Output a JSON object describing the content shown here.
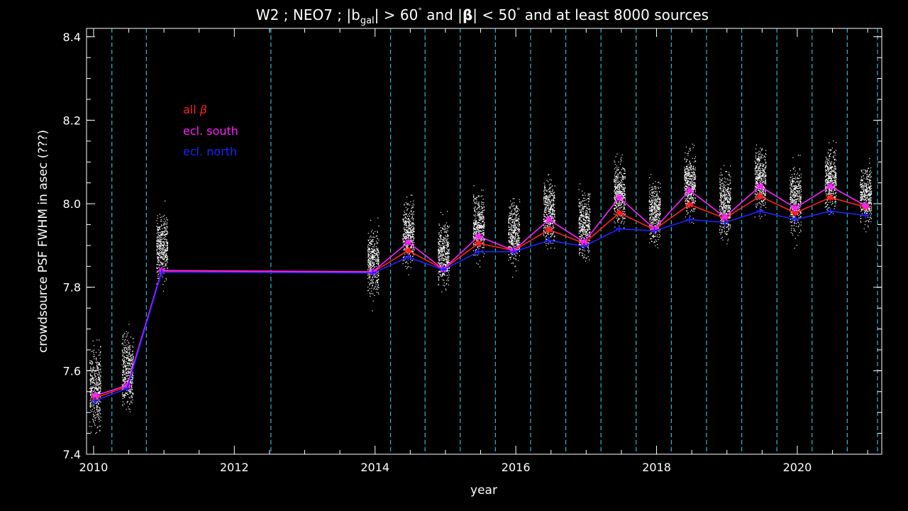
{
  "chart_data": {
    "type": "scatter",
    "title": "W2 ; NEO7 ; |b",
    "title_sub": "gal",
    "title_part2": "| > 60",
    "title_deg1": "°",
    "title_part3": " and |",
    "title_beta": "β",
    "title_part4": "| < 50",
    "title_deg2": "°",
    "title_part5": " and at least 8000 sources",
    "xlabel": "year",
    "ylabel": "crowdsource PSF FWHM in asec (???)",
    "xlim": [
      2009.9,
      2021.2
    ],
    "ylim": [
      7.4,
      8.42
    ],
    "x_ticks": [
      2010,
      2012,
      2014,
      2016,
      2018,
      2020
    ],
    "y_ticks": [
      7.4,
      7.6,
      7.8,
      8.0,
      8.2,
      8.4
    ],
    "x_tick_labels": [
      "2010",
      "2012",
      "2014",
      "2016",
      "2018",
      "2020"
    ],
    "y_tick_labels": [
      "7.4",
      "7.6",
      "7.8",
      "8.0",
      "8.2",
      "8.4"
    ],
    "vlines": [
      2010.26,
      2010.75,
      2012.52,
      2014.22,
      2014.71,
      2015.21,
      2015.71,
      2016.21,
      2016.71,
      2017.21,
      2017.71,
      2018.21,
      2018.71,
      2019.21,
      2019.71,
      2020.21,
      2020.71,
      2021.14
    ],
    "vline_color": "#20c0d0",
    "legend": {
      "position": "upper-left",
      "entries": [
        {
          "label": "all ",
          "label_beta": "β",
          "color": "#ff2020"
        },
        {
          "label": "ecl. south",
          "color": "#ff20ff"
        },
        {
          "label": "ecl. north",
          "color": "#2020ff"
        }
      ]
    },
    "series": [
      {
        "key": "all",
        "color": "#ff2020",
        "x": [
          2010.02,
          2010.48,
          2010.97,
          2013.97,
          2014.47,
          2014.97,
          2015.47,
          2015.97,
          2016.47,
          2016.97,
          2017.47,
          2017.97,
          2018.47,
          2018.97,
          2019.47,
          2019.97,
          2020.47,
          2020.97
        ],
        "y": [
          7.535,
          7.562,
          7.838,
          7.836,
          7.888,
          7.843,
          7.905,
          7.888,
          7.938,
          7.905,
          7.978,
          7.938,
          7.998,
          7.965,
          8.018,
          7.978,
          8.015,
          7.992
        ]
      },
      {
        "key": "south",
        "color": "#ff20ff",
        "x": [
          2010.02,
          2010.48,
          2010.97,
          2013.97,
          2014.47,
          2014.97,
          2015.47,
          2015.97,
          2016.47,
          2016.97,
          2017.47,
          2017.97,
          2018.47,
          2018.97,
          2019.47,
          2019.97,
          2020.47,
          2020.97
        ],
        "y": [
          7.54,
          7.565,
          7.84,
          7.837,
          7.908,
          7.843,
          7.922,
          7.888,
          7.962,
          7.908,
          8.015,
          7.94,
          8.032,
          7.968,
          8.042,
          7.99,
          8.042,
          7.995
        ]
      },
      {
        "key": "north",
        "color": "#2020ff",
        "x": [
          2010.02,
          2010.48,
          2010.97,
          2013.97,
          2014.47,
          2014.97,
          2015.47,
          2015.97,
          2016.47,
          2016.97,
          2017.47,
          2017.97,
          2018.47,
          2018.97,
          2019.47,
          2019.97,
          2020.47,
          2020.97
        ],
        "y": [
          7.528,
          7.558,
          7.836,
          7.834,
          7.872,
          7.842,
          7.885,
          7.885,
          7.912,
          7.898,
          7.94,
          7.935,
          7.962,
          7.955,
          7.982,
          7.962,
          7.982,
          7.972
        ]
      }
    ],
    "scatter_clusters": [
      {
        "x": 2010.02,
        "center": 7.56,
        "spread": 0.09
      },
      {
        "x": 2010.48,
        "center": 7.6,
        "spread": 0.08
      },
      {
        "x": 2010.97,
        "center": 7.9,
        "spread": 0.07
      },
      {
        "x": 2013.97,
        "center": 7.86,
        "spread": 0.07
      },
      {
        "x": 2014.47,
        "center": 7.93,
        "spread": 0.07
      },
      {
        "x": 2014.97,
        "center": 7.88,
        "spread": 0.07
      },
      {
        "x": 2015.47,
        "center": 7.95,
        "spread": 0.07
      },
      {
        "x": 2015.97,
        "center": 7.93,
        "spread": 0.07
      },
      {
        "x": 2016.47,
        "center": 7.98,
        "spread": 0.07
      },
      {
        "x": 2016.97,
        "center": 7.95,
        "spread": 0.07
      },
      {
        "x": 2017.47,
        "center": 8.03,
        "spread": 0.07
      },
      {
        "x": 2017.97,
        "center": 7.98,
        "spread": 0.07
      },
      {
        "x": 2018.47,
        "center": 8.05,
        "spread": 0.07
      },
      {
        "x": 2018.97,
        "center": 8.0,
        "spread": 0.07
      },
      {
        "x": 2019.47,
        "center": 8.06,
        "spread": 0.07
      },
      {
        "x": 2019.97,
        "center": 8.01,
        "spread": 0.07
      },
      {
        "x": 2020.47,
        "center": 8.06,
        "spread": 0.07
      },
      {
        "x": 2020.97,
        "center": 8.02,
        "spread": 0.06
      }
    ]
  }
}
